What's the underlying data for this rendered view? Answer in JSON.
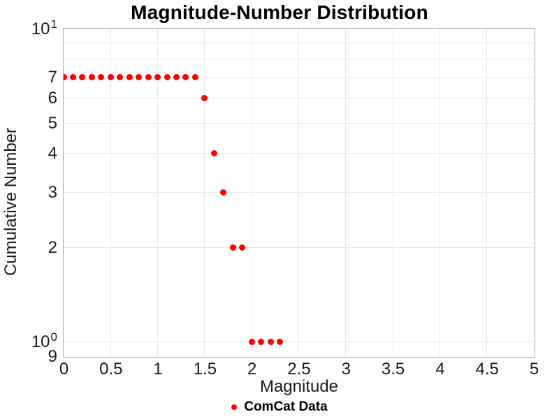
{
  "chart_data": {
    "type": "scatter",
    "title": "Magnitude-Number Distribution",
    "xlabel": "Magnitude",
    "ylabel": "Cumulative Number",
    "grid": true,
    "legend_position": "bottom-center",
    "x_axis": {
      "scale": "linear",
      "min": 0,
      "max": 5,
      "tick_values": [
        0,
        0.5,
        1,
        1.5,
        2,
        2.5,
        3,
        3.5,
        4,
        4.5,
        5
      ],
      "tick_labels": [
        "0",
        "0.5",
        "1",
        "1.5",
        "2",
        "2.5",
        "3",
        "3.5",
        "4",
        "4.5",
        "5"
      ],
      "gridlines": [
        0.5,
        1,
        1.5,
        2,
        2.5,
        3,
        3.5,
        4,
        4.5
      ]
    },
    "y_axis": {
      "scale": "log",
      "min": 0.9,
      "max": 10,
      "ticks": [
        {
          "v": 10,
          "base": "10",
          "sup": "1"
        },
        {
          "v": 7,
          "base": "7",
          "sup": ""
        },
        {
          "v": 6,
          "base": "6",
          "sup": ""
        },
        {
          "v": 5,
          "base": "5",
          "sup": ""
        },
        {
          "v": 4,
          "base": "4",
          "sup": ""
        },
        {
          "v": 3,
          "base": "3",
          "sup": ""
        },
        {
          "v": 2,
          "base": "2",
          "sup": ""
        },
        {
          "v": 1,
          "base": "10",
          "sup": "0"
        },
        {
          "v": 0.9,
          "base": "9",
          "sup": ""
        }
      ],
      "gridlines": [
        9,
        8,
        7,
        6,
        5,
        4,
        3,
        2,
        1
      ]
    },
    "series": [
      {
        "name": "ComCat Data",
        "marker": "circle",
        "marker_size": 9,
        "color": "#ff0000",
        "points": [
          [
            0.0,
            7
          ],
          [
            0.1,
            7
          ],
          [
            0.2,
            7
          ],
          [
            0.3,
            7
          ],
          [
            0.4,
            7
          ],
          [
            0.5,
            7
          ],
          [
            0.6,
            7
          ],
          [
            0.7,
            7
          ],
          [
            0.8,
            7
          ],
          [
            0.9,
            7
          ],
          [
            1.0,
            7
          ],
          [
            1.1,
            7
          ],
          [
            1.2,
            7
          ],
          [
            1.3,
            7
          ],
          [
            1.4,
            7
          ],
          [
            1.5,
            6
          ],
          [
            1.6,
            4
          ],
          [
            1.7,
            3
          ],
          [
            1.8,
            2
          ],
          [
            1.9,
            2
          ],
          [
            2.0,
            1
          ],
          [
            2.1,
            1
          ],
          [
            2.2,
            1
          ],
          [
            2.3,
            1
          ]
        ]
      }
    ],
    "colors": {
      "grid": "#e7e7e7",
      "axis_border": "#a9a9a9",
      "text": "#1a1a1a",
      "title": "#000000"
    }
  }
}
